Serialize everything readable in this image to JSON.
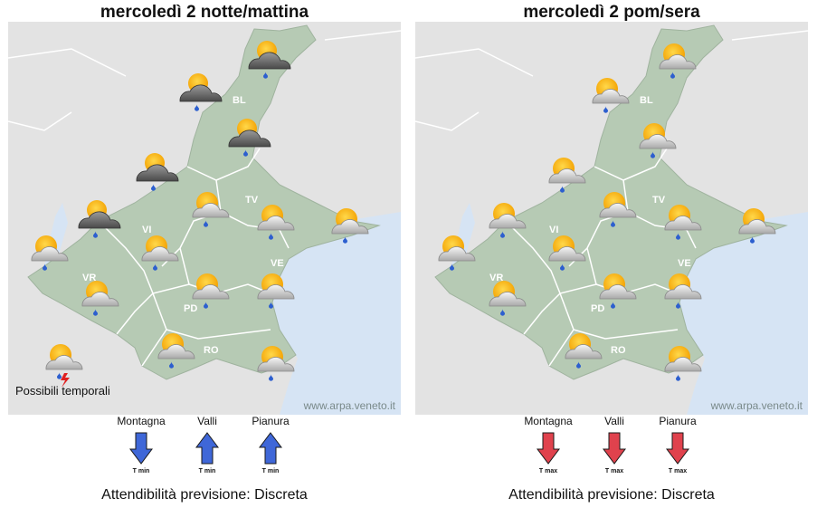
{
  "colors": {
    "sea": "#d6e4f4",
    "land_out": "#e3e3e3",
    "region": "#b6cab4",
    "border": "#ffffff",
    "arrow_up": "#3f67d8",
    "arrow_down": "#e0424d"
  },
  "icons": [
    "sun-cloud-icon",
    "storm-cloud-icon",
    "rain-drop-icon",
    "lightning-icon",
    "arrow-up-icon",
    "arrow-down-icon"
  ],
  "panels": [
    {
      "title": "mercoledì  2 notte/mattina",
      "credit": "www.arpa.veneto.it",
      "provinces": [
        "BL",
        "TV",
        "VI",
        "VE",
        "VR",
        "PD",
        "RO"
      ],
      "storm_note": "Possibili temporali",
      "trends": [
        {
          "label": "Montagna",
          "tlabel": "T min",
          "dir": "down"
        },
        {
          "label": "Valli",
          "tlabel": "T min",
          "dir": "up"
        },
        {
          "label": "Pianura",
          "tlabel": "T min",
          "dir": "up"
        }
      ],
      "reliability": "Attendibilità previsione: Discreta"
    },
    {
      "title": "mercoledì  2 pom/sera",
      "credit": "www.arpa.veneto.it",
      "provinces": [
        "BL",
        "TV",
        "VI",
        "VE",
        "VR",
        "PD",
        "RO"
      ],
      "trends": [
        {
          "label": "Montagna",
          "tlabel": "T max",
          "dir": "down"
        },
        {
          "label": "Valli",
          "tlabel": "T max",
          "dir": "down"
        },
        {
          "label": "Pianura",
          "tlabel": "T max",
          "dir": "down"
        }
      ],
      "reliability": "Attendibilità previsione: Discreta"
    }
  ]
}
